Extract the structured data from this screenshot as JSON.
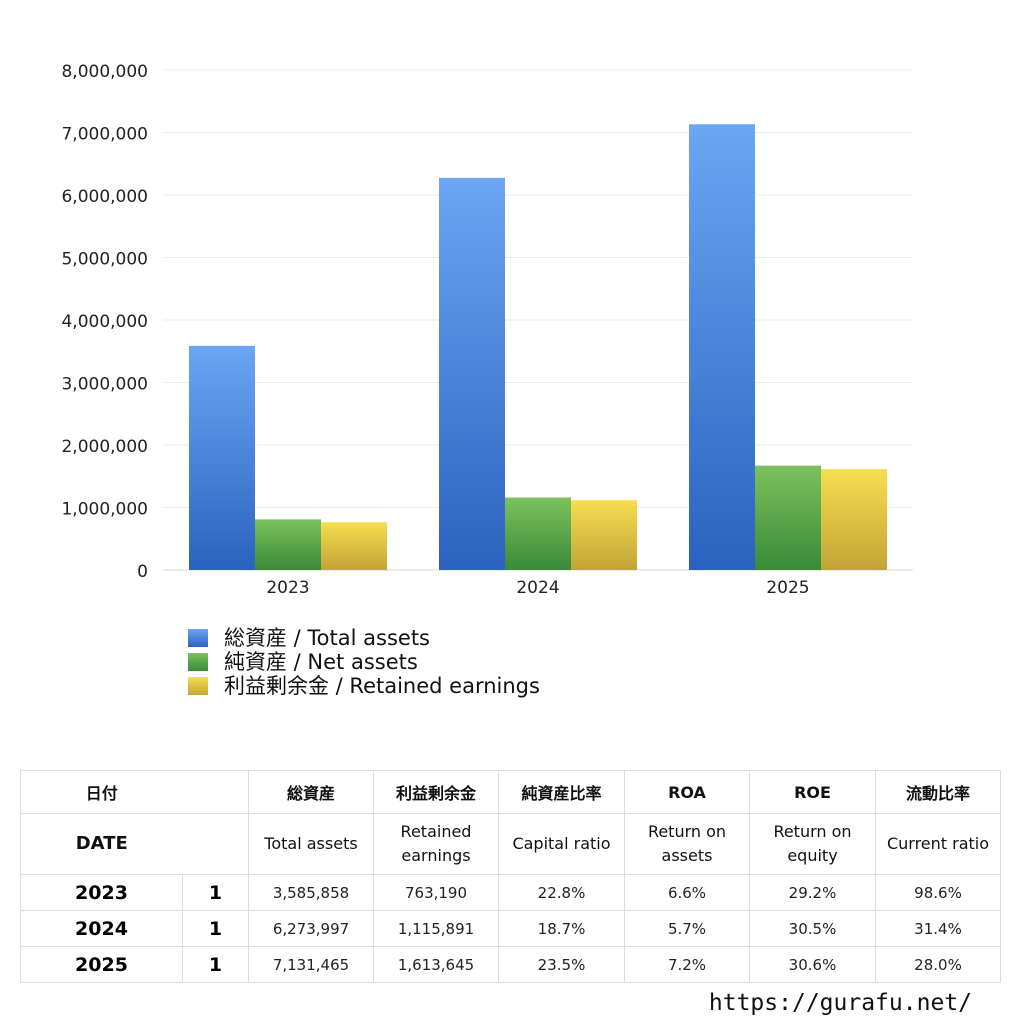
{
  "chart_data": {
    "type": "bar",
    "categories": [
      "2023",
      "2024",
      "2025"
    ],
    "series": [
      {
        "name": "総資産 / Total assets",
        "values": [
          3585858,
          6273997,
          7131465
        ],
        "color": "#4a86dd"
      },
      {
        "name": "純資産 / Net assets",
        "values": [
          810000,
          1160000,
          1670000
        ],
        "color": "#5aaa4a"
      },
      {
        "name": "利益剰余金 / Retained earnings",
        "values": [
          763190,
          1115891,
          1613645
        ],
        "color": "#e8cc45"
      }
    ],
    "ylim": [
      0,
      8000000
    ],
    "yticks": [
      "0",
      "1,000,000",
      "2,000,000",
      "3,000,000",
      "4,000,000",
      "5,000,000",
      "6,000,000",
      "7,000,000",
      "8,000,000"
    ],
    "legend_position": "bottom-left",
    "grid": true
  },
  "table": {
    "header_jp": [
      "日付",
      "",
      "総資産",
      "利益剰余金",
      "純資産比率",
      "ROA",
      "ROE",
      "流動比率"
    ],
    "header_en": [
      "DATE",
      "",
      "Total assets",
      "Retained\nearnings",
      "Capital ratio",
      "Return on\nassets",
      "Return on\nequity",
      "Current ratio"
    ],
    "rows": [
      [
        "2023",
        "1",
        "3,585,858",
        "763,190",
        "22.8%",
        "6.6%",
        "29.2%",
        "98.6%"
      ],
      [
        "2024",
        "1",
        "6,273,997",
        "1,115,891",
        "18.7%",
        "5.7%",
        "30.5%",
        "31.4%"
      ],
      [
        "2025",
        "1",
        "7,131,465",
        "1,613,645",
        "23.5%",
        "7.2%",
        "30.6%",
        "28.0%"
      ]
    ]
  },
  "footer": {
    "url": "https://gurafu.net/"
  }
}
